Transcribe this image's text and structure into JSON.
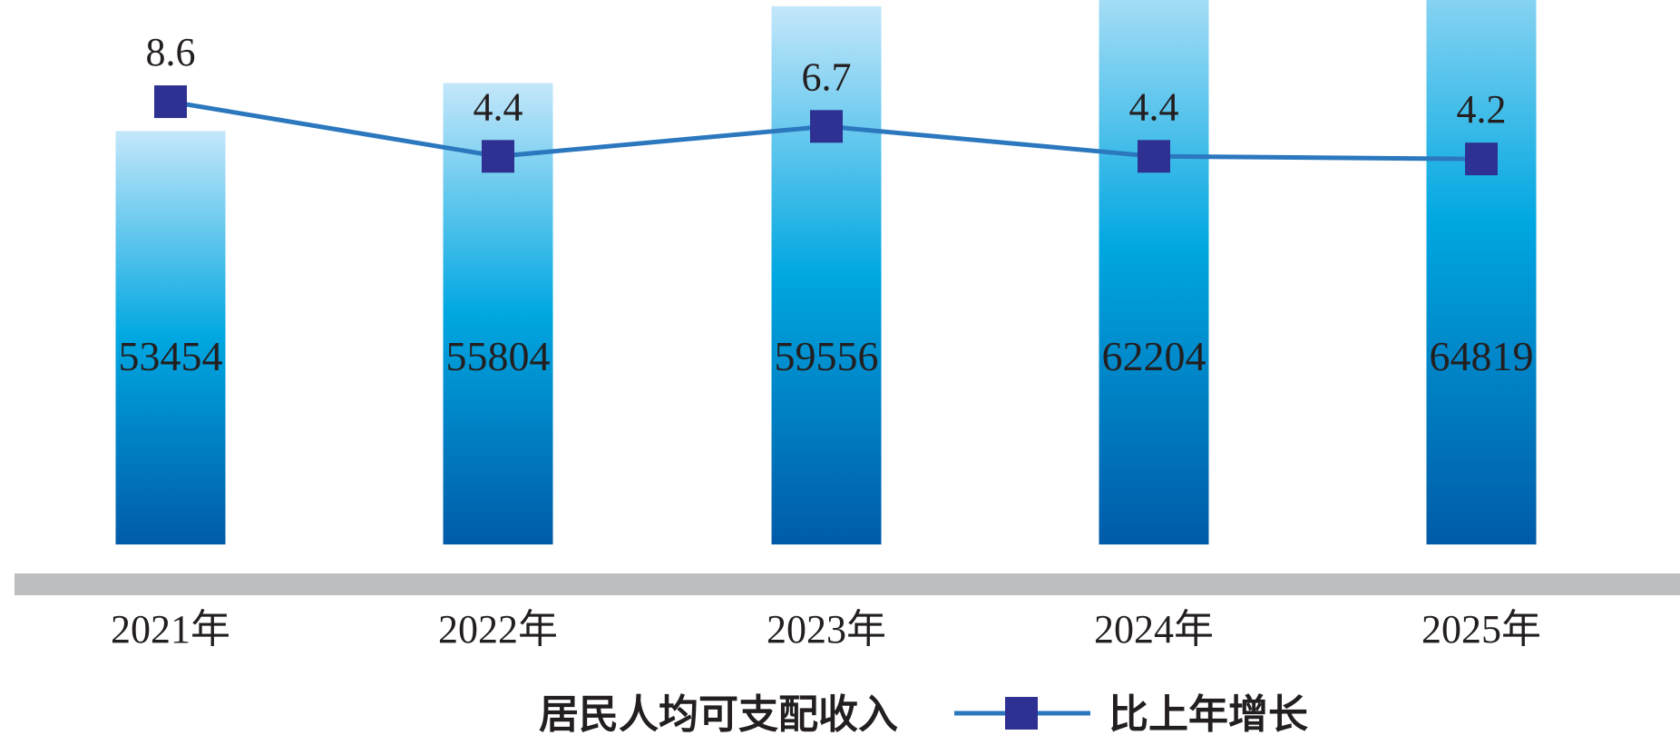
{
  "chart_data": {
    "type": "bar",
    "categories": [
      "2021年",
      "2022年",
      "2023年",
      "2024年",
      "2025年"
    ],
    "series": [
      {
        "name": "居民人均可支配收入",
        "type": "bar",
        "values": [
          53454,
          55804,
          59556,
          62204,
          64819
        ]
      },
      {
        "name": "比上年增长",
        "type": "line",
        "values": [
          8.6,
          4.4,
          6.7,
          4.4,
          4.2
        ]
      }
    ],
    "legend_position": "bottom-center",
    "grid": false,
    "colors": {
      "bar_top": "#c4e7fa",
      "bar_mid": "#00a7e1",
      "bar_bottom": "#005ba8",
      "line": "#2b78bf",
      "marker": "#2e3192",
      "baseline": "#bcbec0",
      "text": "#231f20"
    }
  }
}
